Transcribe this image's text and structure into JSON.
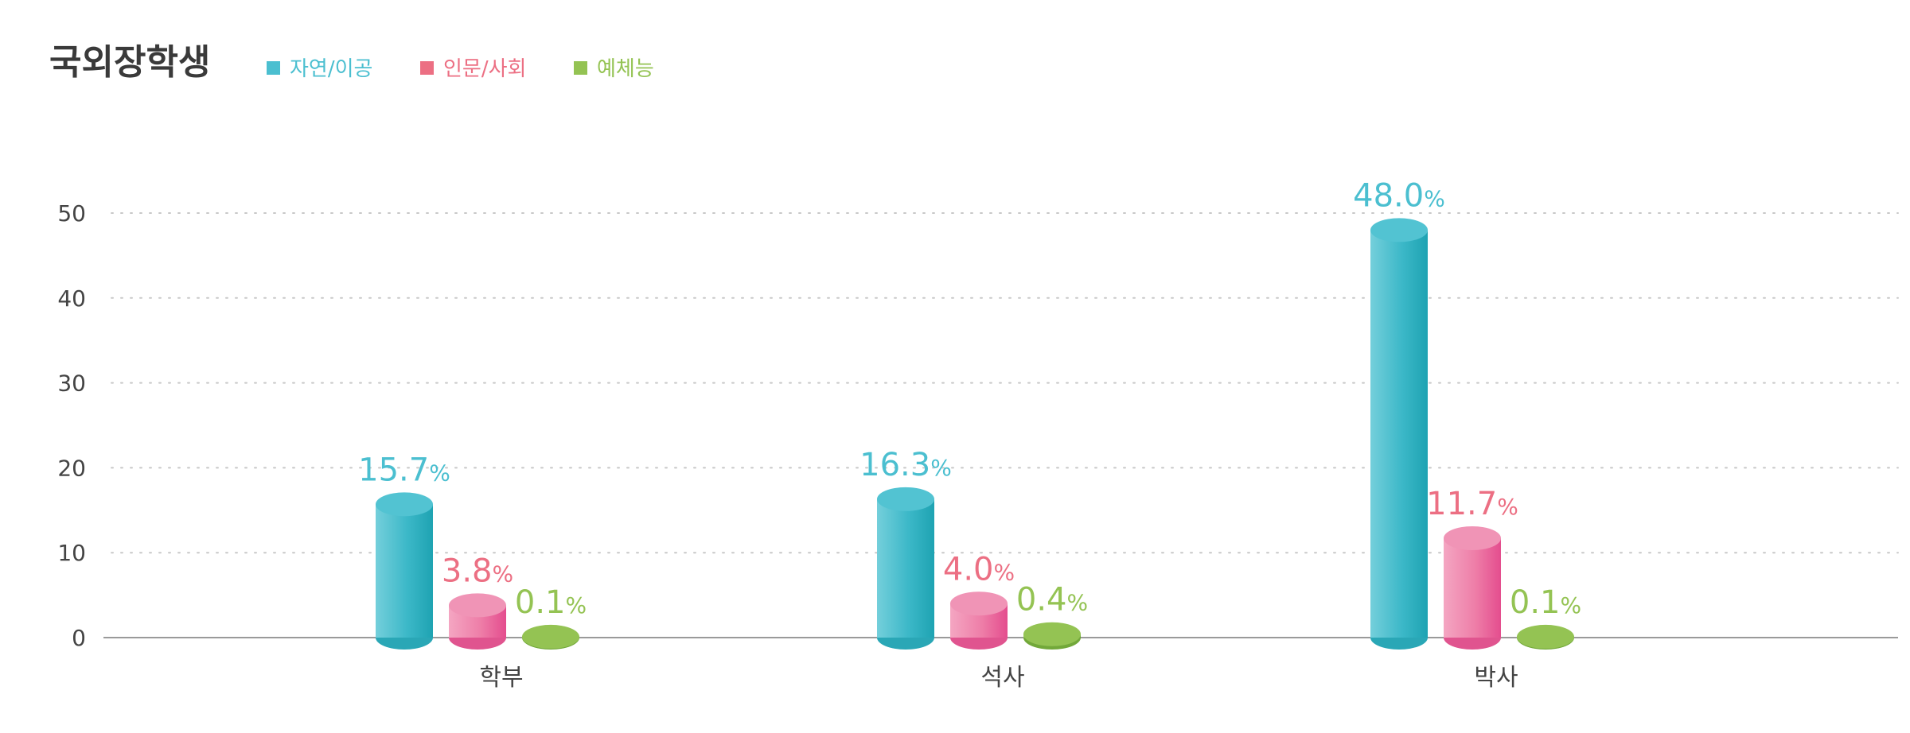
{
  "chart_data": {
    "type": "bar",
    "title": "국외장학생",
    "xlabel": "",
    "ylabel": "",
    "ylim": [
      0,
      50
    ],
    "yticks": [
      0,
      10,
      20,
      30,
      40,
      50
    ],
    "grid": true,
    "legend_position": "top-left",
    "unit": "%",
    "categories": [
      "학부",
      "석사",
      "박사"
    ],
    "series": [
      {
        "name": "자연/이공",
        "color": "#4bbfd0",
        "values": [
          15.7,
          16.3,
          48.0
        ]
      },
      {
        "name": "인문/사회",
        "color": "#ec6f83",
        "values": [
          3.8,
          4.0,
          11.7
        ]
      },
      {
        "name": "예체능",
        "color": "#94c353",
        "values": [
          0.1,
          0.4,
          0.1
        ]
      }
    ]
  }
}
